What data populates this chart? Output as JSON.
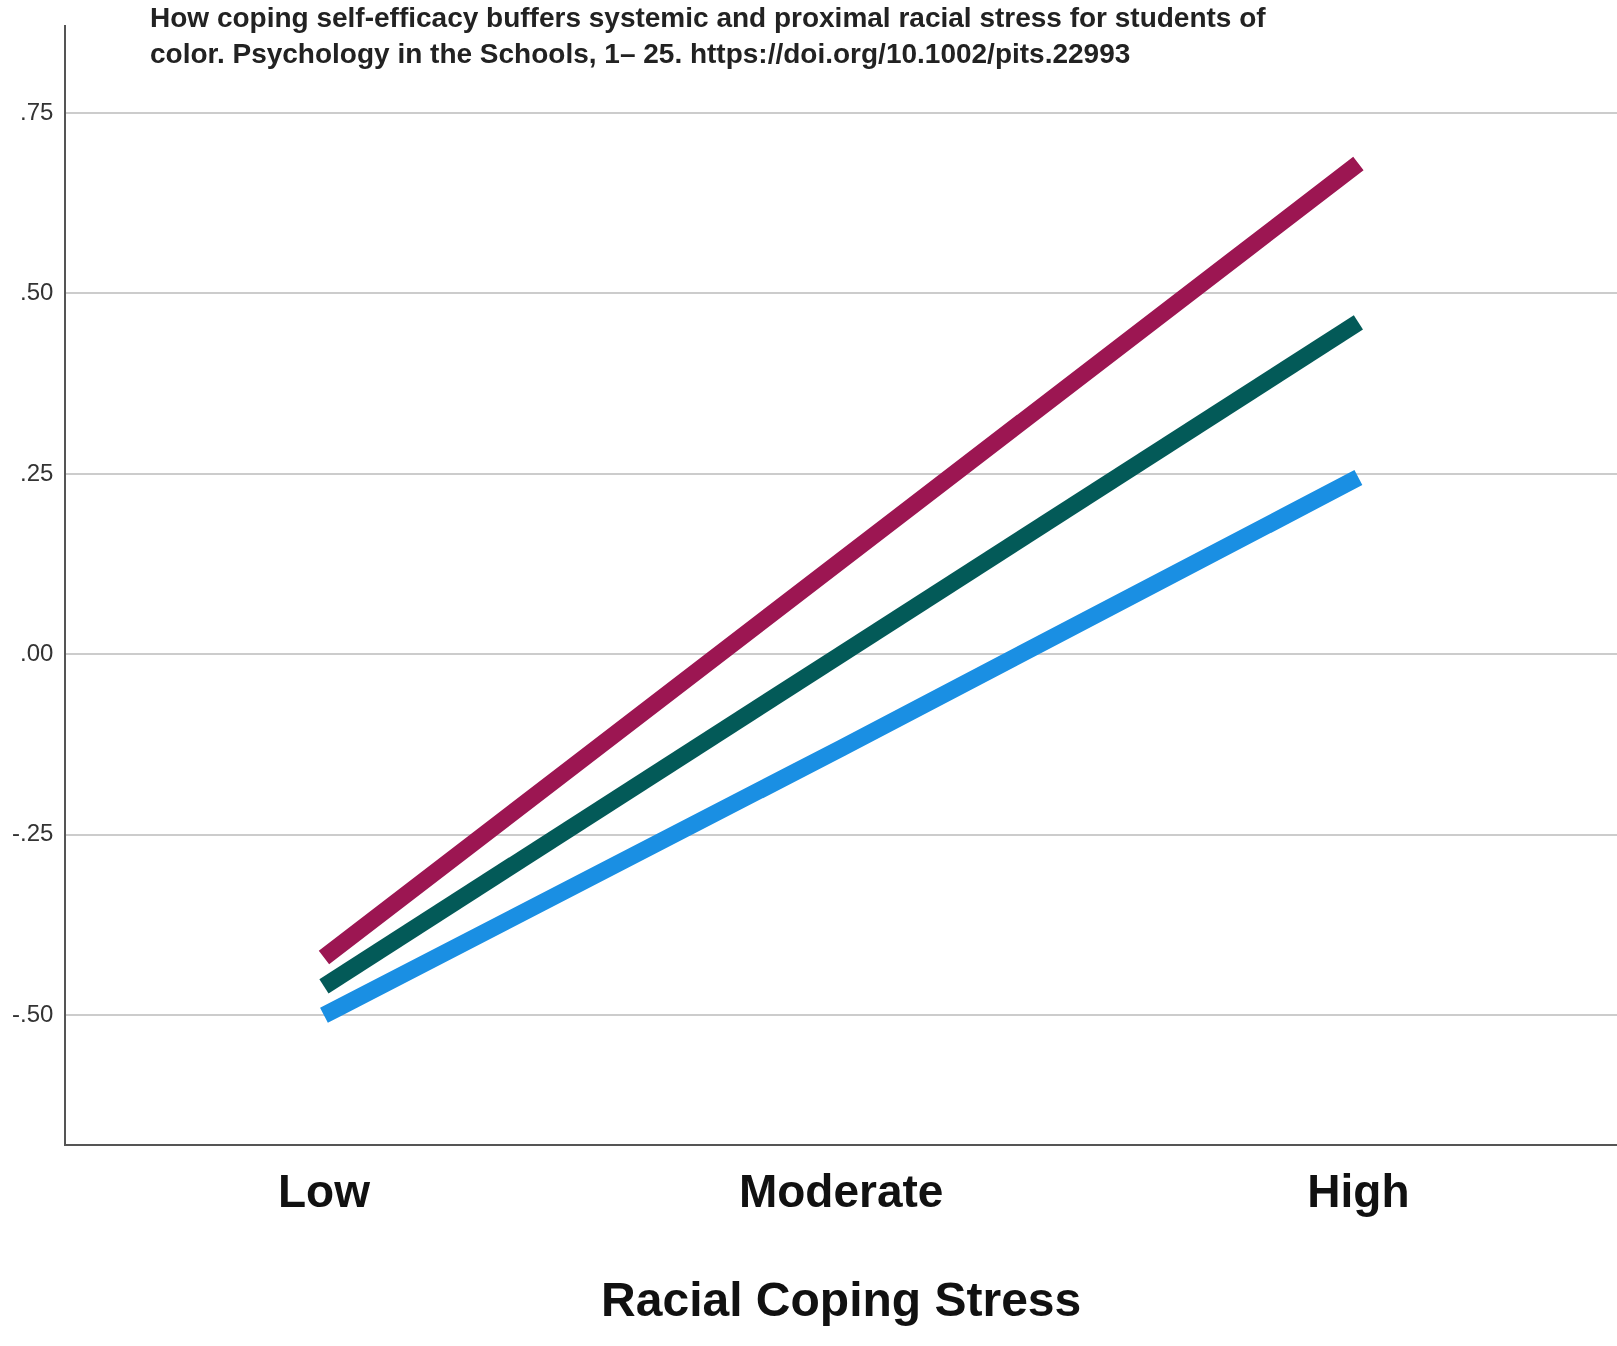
{
  "chart_data": {
    "type": "line",
    "annotations": [
      "How coping self-efficacy buffers systemic and proximal racial stress for students of color. Psychology in the Schools, 1– 25. https://doi.org/10.1002/pits.22993"
    ],
    "xlabel": "Racial Coping Stress",
    "categories": [
      "Low",
      "Moderate",
      "High"
    ],
    "series": [
      {
        "color": "#9c1652",
        "values": [
          -0.42,
          0.13,
          0.68
        ]
      },
      {
        "color": "#035a58",
        "values": [
          -0.46,
          0.0,
          0.46
        ]
      },
      {
        "color": "#1a8fe3",
        "values": [
          -0.5,
          -0.13,
          0.245
        ]
      }
    ],
    "ylim": [
      -0.68,
      0.87
    ],
    "yticks": [
      {
        "value": -0.5,
        "label": "-.50"
      },
      {
        "value": -0.25,
        "label": "-.25"
      },
      {
        "value": 0,
        "label": ".00"
      },
      {
        "value": 0.25,
        "label": ".25"
      },
      {
        "value": 0.5,
        "label": ".50"
      },
      {
        "value": 0.75,
        "label": ".75"
      }
    ],
    "grid": "y",
    "marker": "none"
  }
}
